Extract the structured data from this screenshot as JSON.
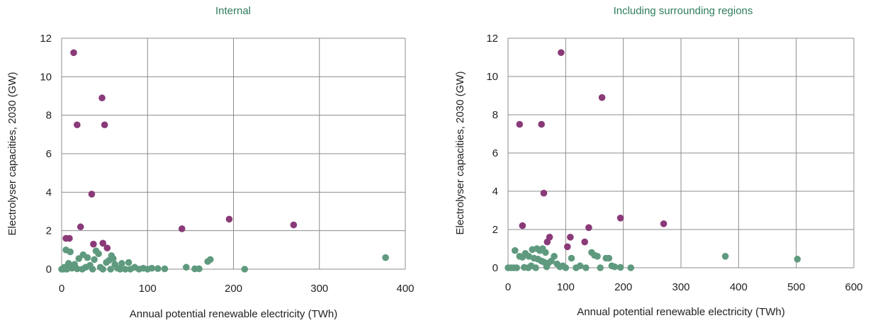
{
  "colors": {
    "title": "#2e7d5b",
    "purple": "#8a3a78",
    "green": "#5f9a7f",
    "grid": "#8c8c8c"
  },
  "chart_data": [
    {
      "type": "scatter",
      "title": "Internal",
      "xlabel": "Annual potential renewable electricity (TWh)",
      "ylabel": "Electrolyser capacities, 2030 (GW)",
      "xlim": [
        0,
        400
      ],
      "ylim": [
        0,
        12
      ],
      "xticks": [
        0,
        100,
        200,
        300,
        400
      ],
      "yticks": [
        0,
        2,
        4,
        6,
        8,
        10,
        12
      ],
      "grid": true,
      "series": [
        {
          "color": "#8a3a78",
          "points": [
            [
              14,
              11.25
            ],
            [
              47,
              8.9
            ],
            [
              18,
              7.5
            ],
            [
              50,
              7.5
            ],
            [
              35,
              3.9
            ],
            [
              22,
              2.2
            ],
            [
              5,
              1.6
            ],
            [
              9,
              1.6
            ],
            [
              37,
              1.3
            ],
            [
              48,
              1.35
            ],
            [
              53,
              1.1
            ],
            [
              140,
              2.1
            ],
            [
              195,
              2.6
            ],
            [
              270,
              2.3
            ]
          ]
        },
        {
          "color": "#5f9a7f",
          "points": [
            [
              5,
              1.0
            ],
            [
              10,
              0.9
            ],
            [
              25,
              0.75
            ],
            [
              40,
              0.95
            ],
            [
              43,
              0.8
            ],
            [
              30,
              0.6
            ],
            [
              20,
              0.55
            ],
            [
              58,
              0.7
            ],
            [
              60,
              0.55
            ],
            [
              55,
              0.45
            ],
            [
              52,
              0.35
            ],
            [
              38,
              0.5
            ],
            [
              70,
              0.3
            ],
            [
              78,
              0.35
            ],
            [
              8,
              0.3
            ],
            [
              15,
              0.25
            ],
            [
              33,
              0.2
            ],
            [
              62,
              0.25
            ],
            [
              3,
              0.1
            ],
            [
              12,
              0.05
            ],
            [
              28,
              0.1
            ],
            [
              45,
              0.1
            ],
            [
              65,
              0.05
            ],
            [
              85,
              0.1
            ],
            [
              95,
              0.05
            ],
            [
              105,
              0.05
            ],
            [
              112,
              0.03
            ],
            [
              120,
              0.02
            ],
            [
              145,
              0.1
            ],
            [
              155,
              0.02
            ],
            [
              160,
              0.02
            ],
            [
              170,
              0.4
            ],
            [
              173,
              0.5
            ],
            [
              213,
              0.0
            ],
            [
              377,
              0.6
            ],
            [
              0,
              0
            ],
            [
              2,
              0
            ],
            [
              6,
              0
            ],
            [
              18,
              0.02
            ],
            [
              24,
              0
            ],
            [
              36,
              0
            ],
            [
              48,
              0
            ],
            [
              57,
              0
            ],
            [
              68,
              0
            ],
            [
              74,
              0
            ],
            [
              80,
              0
            ],
            [
              90,
              0
            ],
            [
              100,
              0
            ]
          ]
        }
      ]
    },
    {
      "type": "scatter",
      "title": "Including surrounding regions",
      "xlabel": "Annual potential renewable electricity (TWh)",
      "ylabel": "Electrolyser capacities, 2030 (GW)",
      "xlim": [
        0,
        600
      ],
      "ylim": [
        0,
        12
      ],
      "xticks": [
        0,
        100,
        200,
        300,
        400,
        500,
        600
      ],
      "yticks": [
        0,
        2,
        4,
        6,
        8,
        10,
        12
      ],
      "grid": true,
      "series": [
        {
          "color": "#8a3a78",
          "points": [
            [
              92,
              11.25
            ],
            [
              163,
              8.9
            ],
            [
              20,
              7.5
            ],
            [
              58,
              7.5
            ],
            [
              62,
              3.9
            ],
            [
              25,
              2.2
            ],
            [
              72,
              1.6
            ],
            [
              108,
              1.6
            ],
            [
              68,
              1.35
            ],
            [
              103,
              1.1
            ],
            [
              133,
              1.35
            ],
            [
              140,
              2.1
            ],
            [
              195,
              2.6
            ],
            [
              270,
              2.3
            ]
          ]
        },
        {
          "color": "#5f9a7f",
          "points": [
            [
              12,
              0.9
            ],
            [
              30,
              0.75
            ],
            [
              42,
              0.95
            ],
            [
              50,
              1.0
            ],
            [
              55,
              0.9
            ],
            [
              60,
              1.0
            ],
            [
              65,
              0.8
            ],
            [
              80,
              0.6
            ],
            [
              25,
              0.55
            ],
            [
              20,
              0.6
            ],
            [
              36,
              0.6
            ],
            [
              45,
              0.5
            ],
            [
              52,
              0.45
            ],
            [
              58,
              0.35
            ],
            [
              62,
              0.3
            ],
            [
              70,
              0.25
            ],
            [
              75,
              0.35
            ],
            [
              85,
              0.2
            ],
            [
              95,
              0.1
            ],
            [
              110,
              0.5
            ],
            [
              125,
              0.1
            ],
            [
              145,
              0.8
            ],
            [
              150,
              0.65
            ],
            [
              155,
              0.6
            ],
            [
              170,
              0.5
            ],
            [
              175,
              0.5
            ],
            [
              180,
              0.1
            ],
            [
              185,
              0.05
            ],
            [
              195,
              0.02
            ],
            [
              213,
              0.0
            ],
            [
              377,
              0.6
            ],
            [
              502,
              0.45
            ],
            [
              0,
              0
            ],
            [
              5,
              0
            ],
            [
              10,
              0
            ],
            [
              15,
              0
            ],
            [
              28,
              0.02
            ],
            [
              35,
              0
            ],
            [
              40,
              0.1
            ],
            [
              48,
              0
            ],
            [
              67,
              0.05
            ],
            [
              90,
              0.05
            ],
            [
              100,
              0
            ],
            [
              118,
              0
            ],
            [
              135,
              0
            ],
            [
              160,
              0
            ]
          ]
        }
      ]
    }
  ]
}
